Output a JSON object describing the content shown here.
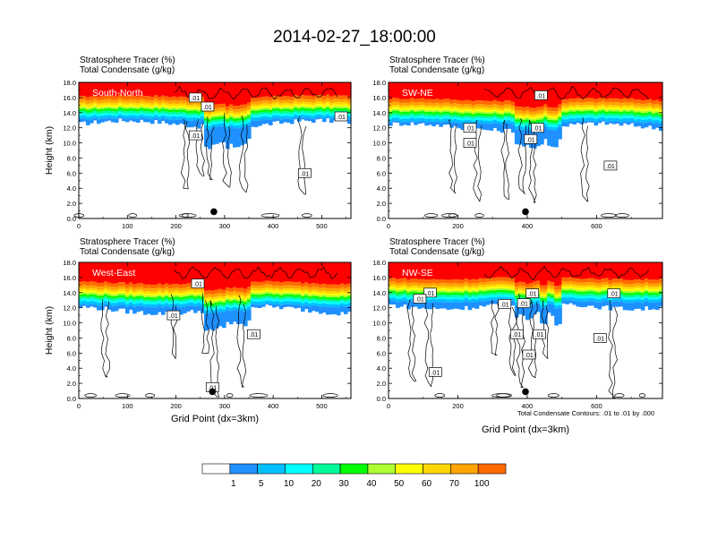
{
  "title": "2014-02-27_18:00:00",
  "colors": {
    "levels": [
      "#ffffff",
      "#1e90ff",
      "#00bfff",
      "#00ffff",
      "#00fa9a",
      "#00ff00",
      "#adff2f",
      "#ffff00",
      "#ffd700",
      "#ffa500",
      "#ff6a00",
      "#ff0000"
    ],
    "contour": "#000000",
    "marker": "#000000"
  },
  "colorbar": {
    "labels": [
      "1",
      "5",
      "10",
      "20",
      "30",
      "40",
      "50",
      "60",
      "70",
      "100"
    ]
  },
  "contour_note": "Total Condensate Contours: .01 to .01 by .000",
  "chart_data": [
    {
      "type": "heatmap",
      "name": "South-North",
      "title_lines": [
        "Stratosphere Tracer   (%)",
        "Total Condensate   (g/kg)"
      ],
      "ylabel": "Height (km)",
      "xlabel": "",
      "xlim": [
        0,
        560
      ],
      "ylim": [
        0,
        18
      ],
      "xticks": [
        "0",
        "100",
        "200",
        "300",
        "400",
        "500"
      ],
      "xtick_values": [
        0,
        100,
        200,
        300,
        400,
        500
      ],
      "yticks": [
        "0.0",
        "2.0",
        "4.0",
        "6.0",
        "8.0",
        "10.0",
        "12.0",
        "14.0",
        "16.0",
        "18.0"
      ],
      "tracer_base_km": 15.0,
      "marker_x": 278,
      "contour_labels": [
        {
          "text": ".01",
          "x": 240,
          "y": 16.0
        },
        {
          "text": ".01",
          "x": 265,
          "y": 14.8
        },
        {
          "text": ".01",
          "x": 240,
          "y": 11.0
        },
        {
          "text": ".01",
          "x": 540,
          "y": 13.5
        },
        {
          "text": ".01",
          "x": 465,
          "y": 6.0
        }
      ]
    },
    {
      "type": "heatmap",
      "name": "SW-NE",
      "title_lines": [
        "Stratosphere Tracer   (%)",
        "Total Condensate   (g/kg)"
      ],
      "ylabel": "",
      "xlabel": "",
      "xlim": [
        0,
        790
      ],
      "ylim": [
        0,
        18
      ],
      "xticks": [
        "0",
        "200",
        "400",
        "600"
      ],
      "xtick_values": [
        0,
        200,
        400,
        600
      ],
      "yticks": [
        "0.0",
        "2.0",
        "4.0",
        "6.0",
        "8.0",
        "10.0",
        "12.0",
        "14.0",
        "16.0",
        "18.0"
      ],
      "tracer_base_km": 14.6,
      "marker_x": 395,
      "contour_labels": [
        {
          "text": ".01",
          "x": 235,
          "y": 12.0
        },
        {
          "text": ".01",
          "x": 410,
          "y": 10.5
        },
        {
          "text": ".01",
          "x": 235,
          "y": 10.0
        },
        {
          "text": ".01",
          "x": 430,
          "y": 12.0
        },
        {
          "text": ".01",
          "x": 640,
          "y": 7.0
        },
        {
          "text": ".01",
          "x": 440,
          "y": 16.3
        }
      ]
    },
    {
      "type": "heatmap",
      "name": "West-East",
      "title_lines": [
        "Stratosphere Tracer   (%)",
        "Total Condensate   (g/kg)"
      ],
      "ylabel": "Height (km)",
      "xlabel": "Grid Point (dx=3km)",
      "xlim": [
        0,
        560
      ],
      "ylim": [
        0,
        18
      ],
      "xticks": [
        "0",
        "100",
        "200",
        "300",
        "400",
        "500"
      ],
      "xtick_values": [
        0,
        100,
        200,
        300,
        400,
        500
      ],
      "yticks": [
        "0.0",
        "2.0",
        "4.0",
        "6.0",
        "8.0",
        "10.0",
        "12.0",
        "14.0",
        "16.0",
        "18.0"
      ],
      "tracer_base_km": 14.2,
      "marker_x": 275,
      "contour_labels": [
        {
          "text": ".01",
          "x": 195,
          "y": 11.0
        },
        {
          "text": ".01",
          "x": 245,
          "y": 15.2
        },
        {
          "text": ".01",
          "x": 360,
          "y": 8.5
        },
        {
          "text": ".01",
          "x": 275,
          "y": 1.5
        }
      ]
    },
    {
      "type": "heatmap",
      "name": "NW-SE",
      "title_lines": [
        "Stratosphere Tracer   (%)",
        "Total Condensate   (g/kg)"
      ],
      "ylabel": "",
      "xlabel": "Grid Point (dx=3km)",
      "xlim": [
        0,
        790
      ],
      "ylim": [
        0,
        18
      ],
      "xticks": [
        "0",
        "200",
        "400",
        "600"
      ],
      "xtick_values": [
        0,
        200,
        400,
        600
      ],
      "yticks": [
        "0.0",
        "2.0",
        "4.0",
        "6.0",
        "8.0",
        "10.0",
        "12.0",
        "14.0",
        "16.0",
        "18.0"
      ],
      "tracer_base_km": 14.8,
      "marker_x": 395,
      "contour_labels": [
        {
          "text": ".01",
          "x": 120,
          "y": 14.0
        },
        {
          "text": ".01",
          "x": 90,
          "y": 13.2
        },
        {
          "text": ".01",
          "x": 335,
          "y": 12.5
        },
        {
          "text": ".01",
          "x": 390,
          "y": 12.6
        },
        {
          "text": ".01",
          "x": 415,
          "y": 13.9
        },
        {
          "text": ".01",
          "x": 370,
          "y": 8.5
        },
        {
          "text": ".01",
          "x": 435,
          "y": 8.5
        },
        {
          "text": ".01",
          "x": 405,
          "y": 5.8
        },
        {
          "text": ".01",
          "x": 610,
          "y": 8.0
        },
        {
          "text": ".01",
          "x": 650,
          "y": 13.9
        },
        {
          "text": ".01",
          "x": 135,
          "y": 3.5
        }
      ]
    }
  ]
}
